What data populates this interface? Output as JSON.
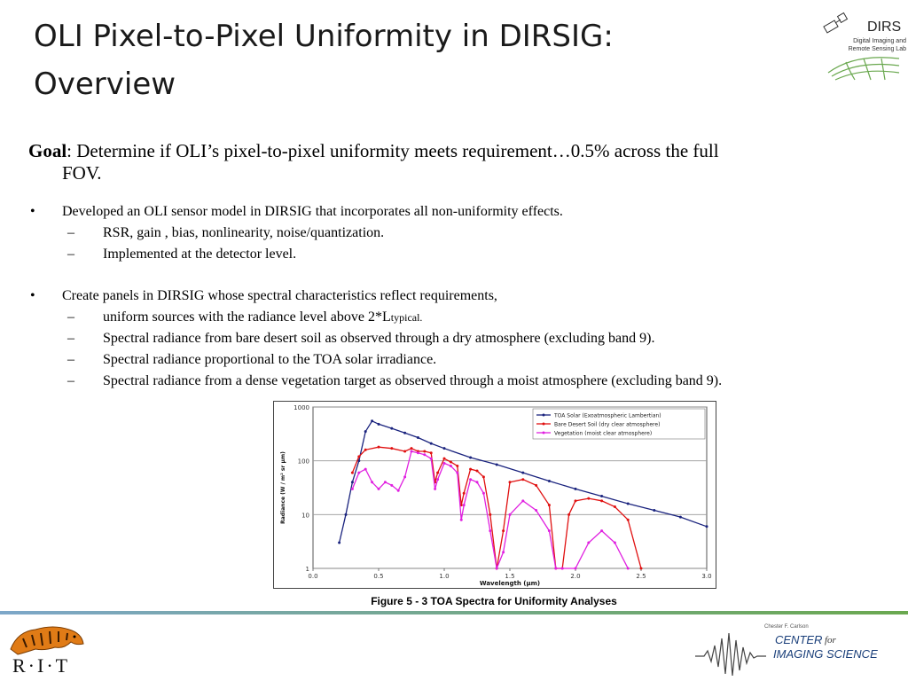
{
  "slide": {
    "title_line1": "OLI Pixel-to-Pixel Uniformity in DIRSIG:",
    "title_line2": "Overview"
  },
  "dirs_logo": {
    "name": "DIRS",
    "subtitle": "Digital Imaging and Remote Sensing Lab"
  },
  "goal": {
    "label": "Goal",
    "text_line1": ":  Determine if OLI’s pixel-to-pixel uniformity meets requirement…0.5% across the full",
    "text_line2": "FOV."
  },
  "bullets": [
    {
      "text": "Developed an OLI sensor model in DIRSIG that incorporates all non-uniformity effects.",
      "subitems": [
        "RSR, gain , bias, nonlinearity, noise/quantization.",
        "Implemented at the detector level."
      ]
    },
    {
      "text": "Create panels in DIRSIG whose spectral characteristics reflect requirements,",
      "subitem_first_main": "uniform sources with the radiance level above 2*L",
      "subitem_first_sub": "typical.",
      "subitems": [
        "Spectral radiance from bare desert soil as observed through a dry atmosphere (excluding band 9).",
        "Spectral radiance proportional to the TOA solar irradiance.",
        "Spectral radiance from a dense vegetation target as observed through a moist atmosphere (excluding band 9)."
      ]
    }
  ],
  "bullet_symbol": "•",
  "dash_symbol": "–",
  "chart_data": {
    "type": "line",
    "xlabel": "Wavelength (μm)",
    "ylabel": "Radiance (W / m² sr μm)",
    "xlim": [
      0.0,
      3.0
    ],
    "ylim": [
      1,
      1000
    ],
    "y_scale": "log",
    "x_ticks": [
      "0.0",
      "0.5",
      "1.0",
      "1.5",
      "2.0",
      "2.5",
      "3.0"
    ],
    "y_ticks": [
      "1",
      "10",
      "100",
      "1000"
    ],
    "legend_position": "top-right",
    "grid": true,
    "series": [
      {
        "name": "TOA Solar (Exoatmospheric Lambertian)",
        "color": "#1a237e",
        "x": [
          0.2,
          0.25,
          0.3,
          0.35,
          0.4,
          0.45,
          0.5,
          0.6,
          0.7,
          0.8,
          0.9,
          1.0,
          1.2,
          1.4,
          1.6,
          1.8,
          2.0,
          2.2,
          2.4,
          2.6,
          2.8,
          3.0
        ],
        "y": [
          3,
          10,
          40,
          100,
          350,
          550,
          480,
          400,
          330,
          270,
          210,
          170,
          115,
          85,
          60,
          42,
          30,
          22,
          16,
          12,
          9,
          6
        ]
      },
      {
        "name": "Bare Desert Soil (dry clear atmosphere)",
        "color": "#e01010",
        "x": [
          0.3,
          0.35,
          0.4,
          0.5,
          0.6,
          0.7,
          0.75,
          0.8,
          0.85,
          0.9,
          0.93,
          0.95,
          1.0,
          1.05,
          1.1,
          1.13,
          1.15,
          1.2,
          1.25,
          1.3,
          1.35,
          1.4,
          1.45,
          1.5,
          1.6,
          1.7,
          1.8,
          1.85,
          1.9,
          1.95,
          2.0,
          2.1,
          2.2,
          2.3,
          2.4,
          2.5
        ],
        "y": [
          60,
          120,
          160,
          180,
          170,
          150,
          170,
          150,
          150,
          140,
          40,
          60,
          110,
          95,
          80,
          15,
          25,
          70,
          65,
          50,
          10,
          1,
          5,
          40,
          45,
          35,
          15,
          1,
          1,
          10,
          18,
          20,
          18,
          14,
          8,
          1
        ]
      },
      {
        "name": "Vegetation (moist clear atmosphere)",
        "color": "#e020e0",
        "x": [
          0.3,
          0.35,
          0.4,
          0.45,
          0.5,
          0.55,
          0.6,
          0.65,
          0.7,
          0.75,
          0.8,
          0.85,
          0.9,
          0.93,
          0.95,
          1.0,
          1.05,
          1.1,
          1.13,
          1.15,
          1.2,
          1.25,
          1.3,
          1.35,
          1.4,
          1.45,
          1.5,
          1.6,
          1.7,
          1.8,
          1.85,
          1.9,
          2.0,
          2.1,
          2.2,
          2.3,
          2.4
        ],
        "y": [
          30,
          60,
          70,
          40,
          30,
          40,
          35,
          28,
          50,
          150,
          140,
          130,
          110,
          30,
          45,
          90,
          80,
          60,
          8,
          15,
          45,
          40,
          25,
          5,
          1,
          2,
          10,
          18,
          12,
          5,
          1,
          1,
          1,
          3,
          5,
          3,
          1
        ]
      }
    ]
  },
  "figure_caption": "Figure 5 - 3 TOA Spectra for Uniformity Analyses",
  "footer": {
    "rit_text": "R·I·T",
    "cis_line1": "Chester F. Carlson",
    "cis_line2": "CENTER",
    "cis_for": "for",
    "cis_line3": "IMAGING SCIENCE"
  },
  "colors": {
    "footer_line_start": "#7da7c9",
    "footer_line_end": "#6aa84f",
    "cis_blue": "#1a3f7a"
  }
}
